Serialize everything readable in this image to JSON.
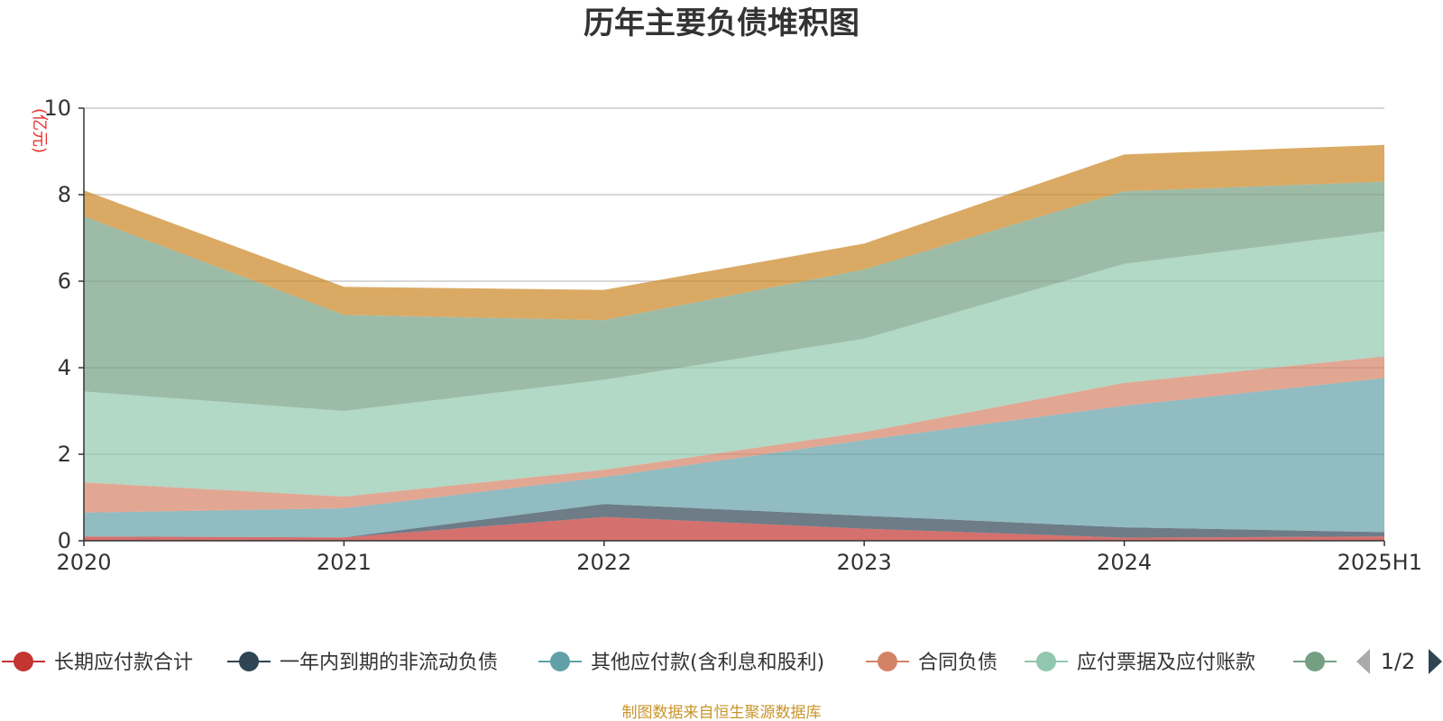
{
  "chart_data": {
    "type": "area",
    "stacked": true,
    "title": "历年主要负债堆积图",
    "unit_label": "(亿元)",
    "categories": [
      "2020",
      "2021",
      "2022",
      "2023",
      "2024",
      "2025H1"
    ],
    "ylim": [
      0,
      10
    ],
    "yticks": [
      "0",
      "2",
      "4",
      "6",
      "8",
      "10"
    ],
    "grid": true,
    "legend_position": "bottom",
    "series": [
      {
        "name": "长期应付款合计",
        "color": "#c23531",
        "values": [
          0.1,
          0.08,
          0.55,
          0.28,
          0.07,
          0.1
        ]
      },
      {
        "name": "一年内到期的非流动负债",
        "color": "#2f4554",
        "values": [
          0,
          0,
          0.3,
          0.3,
          0.24,
          0.1
        ]
      },
      {
        "name": "其他应付款(含利息和股利)",
        "color": "#61a0a8",
        "values": [
          0.55,
          0.67,
          0.62,
          1.75,
          2.81,
          3.56
        ]
      },
      {
        "name": "合同负债",
        "color": "#d48265",
        "values": [
          0.7,
          0.27,
          0.17,
          0.18,
          0.53,
          0.5
        ]
      },
      {
        "name": "应付票据及应付账款",
        "color": "#91c7ae",
        "values": [
          2.1,
          1.98,
          2.08,
          2.16,
          2.75,
          2.89
        ]
      },
      {
        "name": "",
        "color": "#749f83",
        "values": [
          4.05,
          2.22,
          1.38,
          1.6,
          1.68,
          1.15
        ]
      },
      {
        "name": "",
        "color": "#ca8622",
        "values": [
          0.6,
          0.65,
          0.7,
          0.6,
          0.85,
          0.85
        ]
      }
    ]
  },
  "legend": {
    "visible_items": [
      {
        "label": "长期应付款合计",
        "color": "#c23531"
      },
      {
        "label": "一年内到期的非流动负债",
        "color": "#2f4554"
      },
      {
        "label": "其他应付款(含利息和股利)",
        "color": "#61a0a8"
      },
      {
        "label": "合同负债",
        "color": "#d48265"
      },
      {
        "label": "应付票据及应付账款",
        "color": "#91c7ae"
      },
      {
        "label": "",
        "color": "#749f83"
      }
    ],
    "page": "1/2"
  },
  "source_note": "制图数据来自恒生聚源数据库"
}
